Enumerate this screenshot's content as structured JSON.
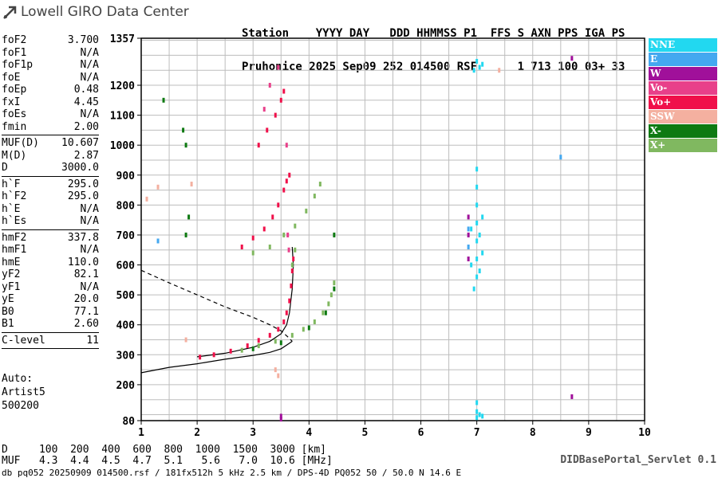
{
  "logo": {
    "text": "Lowell GIRO Data Center",
    "icon": "lowell-arrow-icon",
    "color": "#444444"
  },
  "header": {
    "line1": "Station    YYYY DAY   DDD HHMMSS P1  FFS S AXN PPS IGA PS",
    "line2": "Pruhonice 2025 Sep09 252 014500 RSF      1 713 100 03+ 33"
  },
  "params": [
    {
      "label": "foF2",
      "value": "3.700"
    },
    {
      "label": "foF1",
      "value": "N/A"
    },
    {
      "label": "foF1p",
      "value": "N/A"
    },
    {
      "label": "foE",
      "value": "N/A"
    },
    {
      "label": "foEp",
      "value": "0.48"
    },
    {
      "label": "fxI",
      "value": "4.45"
    },
    {
      "label": "foEs",
      "value": "N/A"
    },
    {
      "label": "fmin",
      "value": "2.00"
    },
    {
      "sep": true
    },
    {
      "label": "MUF(D)",
      "value": "10.607"
    },
    {
      "label": "M(D)",
      "value": "2.87"
    },
    {
      "label": "D",
      "value": "3000.0"
    },
    {
      "sep": true
    },
    {
      "label": "h`F",
      "value": "295.0"
    },
    {
      "label": "h`F2",
      "value": "295.0"
    },
    {
      "label": "h`E",
      "value": "N/A"
    },
    {
      "label": "h`Es",
      "value": "N/A"
    },
    {
      "sep": true
    },
    {
      "label": "hmF2",
      "value": "337.8"
    },
    {
      "label": "hmF1",
      "value": "N/A"
    },
    {
      "label": "hmE",
      "value": "110.0"
    },
    {
      "label": "yF2",
      "value": "82.1"
    },
    {
      "label": "yF1",
      "value": "N/A"
    },
    {
      "label": "yE",
      "value": "20.0"
    },
    {
      "label": "B0",
      "value": "77.1"
    },
    {
      "label": "B1",
      "value": "2.60"
    },
    {
      "sep": true
    },
    {
      "label": "C-level",
      "value": "11"
    },
    {
      "sep": true
    }
  ],
  "auto": {
    "line1": "Auto:",
    "line2": "Artist5",
    "line3": "500200"
  },
  "legend": [
    {
      "label": "NNE",
      "color": "#22D8F0"
    },
    {
      "label": "E",
      "color": "#44A8F0"
    },
    {
      "label": "W",
      "color": "#A0109A"
    },
    {
      "label": "Vo-",
      "color": "#E8408A"
    },
    {
      "label": "Vo+",
      "color": "#F0104A"
    },
    {
      "label": "SSW",
      "color": "#F4B0A0"
    },
    {
      "label": "X-",
      "color": "#0E7A12"
    },
    {
      "label": "X+",
      "color": "#80B860"
    }
  ],
  "muf_table": {
    "row1": "D     100  200  400  600  800  1000  1500  3000 [km]",
    "row2": "MUF   4.3  4.4  4.5  4.7  5.1   5.6   7.0  10.6 [MHz]"
  },
  "footer": "db pq052 20250909 014500.rsf / 181fx512h 5 kHz 2.5 km / DPS-4D PQ052 50 / 50.0 N 14.6 E",
  "servlet": "DIDBasePortal_Servlet 0.1",
  "chart_data": {
    "type": "scatter",
    "xlim": [
      1,
      10
    ],
    "ylim": [
      80,
      1357
    ],
    "x_ticks": [
      1,
      2,
      3,
      4,
      5,
      6,
      7,
      8,
      9,
      10
    ],
    "y_ticks": [
      80,
      200,
      300,
      400,
      500,
      600,
      700,
      800,
      900,
      1000,
      1100,
      1200,
      1357
    ],
    "xlabel": "",
    "ylabel": "",
    "grid": true,
    "legend_position": "right",
    "series": [
      {
        "name": "Vo+",
        "color": "#F0104A",
        "points": [
          [
            2.05,
            292
          ],
          [
            2.3,
            300
          ],
          [
            2.6,
            312
          ],
          [
            2.9,
            330
          ],
          [
            3.1,
            348
          ],
          [
            3.3,
            365
          ],
          [
            3.45,
            385
          ],
          [
            3.55,
            410
          ],
          [
            3.6,
            440
          ],
          [
            3.65,
            480
          ],
          [
            3.68,
            530
          ],
          [
            3.7,
            580
          ],
          [
            3.72,
            620
          ],
          [
            2.8,
            660
          ],
          [
            3.0,
            690
          ],
          [
            3.2,
            720
          ],
          [
            3.35,
            760
          ],
          [
            3.45,
            800
          ],
          [
            3.55,
            850
          ],
          [
            3.6,
            880
          ],
          [
            3.65,
            900
          ],
          [
            3.1,
            1000
          ],
          [
            3.25,
            1050
          ],
          [
            3.4,
            1100
          ],
          [
            3.5,
            1150
          ],
          [
            3.55,
            1180
          ]
        ]
      },
      {
        "name": "X+",
        "color": "#80B860",
        "points": [
          [
            2.8,
            315
          ],
          [
            3.1,
            330
          ],
          [
            3.4,
            345
          ],
          [
            3.7,
            365
          ],
          [
            3.9,
            385
          ],
          [
            4.1,
            410
          ],
          [
            4.25,
            440
          ],
          [
            4.35,
            470
          ],
          [
            4.4,
            500
          ],
          [
            4.45,
            540
          ],
          [
            3.0,
            640
          ],
          [
            3.3,
            660
          ],
          [
            3.55,
            700
          ],
          [
            3.75,
            730
          ],
          [
            3.95,
            780
          ],
          [
            4.1,
            830
          ],
          [
            4.2,
            870
          ],
          [
            3.75,
            650
          ],
          [
            3.7,
            600
          ]
        ]
      },
      {
        "name": "X-",
        "color": "#0E7A12",
        "points": [
          [
            3.0,
            320
          ],
          [
            3.5,
            340
          ],
          [
            4.0,
            390
          ],
          [
            4.3,
            440
          ],
          [
            4.45,
            520
          ],
          [
            4.45,
            700
          ],
          [
            1.75,
            1050
          ],
          [
            1.8,
            1000
          ],
          [
            1.85,
            760
          ],
          [
            1.8,
            700
          ],
          [
            1.4,
            1150
          ]
        ]
      },
      {
        "name": "Vo-",
        "color": "#E8408A",
        "points": [
          [
            3.2,
            1120
          ],
          [
            3.3,
            1200
          ],
          [
            3.45,
            1260
          ],
          [
            3.6,
            1000
          ],
          [
            3.62,
            700
          ],
          [
            3.64,
            650
          ]
        ]
      },
      {
        "name": "NNE",
        "color": "#22D8F0",
        "points": [
          [
            6.95,
            520
          ],
          [
            7.0,
            560
          ],
          [
            7.0,
            620
          ],
          [
            7.0,
            680
          ],
          [
            7.0,
            740
          ],
          [
            7.0,
            800
          ],
          [
            7.0,
            860
          ],
          [
            7.0,
            920
          ],
          [
            7.05,
            580
          ],
          [
            7.05,
            700
          ],
          [
            7.1,
            640
          ],
          [
            7.1,
            760
          ],
          [
            6.9,
            600
          ],
          [
            6.9,
            720
          ],
          [
            7.0,
            90
          ],
          [
            7.0,
            110
          ],
          [
            7.0,
            140
          ],
          [
            7.05,
            100
          ],
          [
            7.1,
            95
          ],
          [
            7.0,
            1280
          ],
          [
            6.95,
            1250
          ],
          [
            7.05,
            1260
          ],
          [
            7.1,
            1270
          ]
        ]
      },
      {
        "name": "W",
        "color": "#A0109A",
        "points": [
          [
            6.85,
            620
          ],
          [
            6.85,
            700
          ],
          [
            6.85,
            760
          ],
          [
            3.5,
            85
          ],
          [
            3.5,
            95
          ],
          [
            8.7,
            160
          ],
          [
            8.7,
            1290
          ]
        ]
      },
      {
        "name": "E",
        "color": "#44A8F0",
        "points": [
          [
            6.85,
            660
          ],
          [
            6.85,
            720
          ],
          [
            8.5,
            960
          ],
          [
            1.3,
            680
          ]
        ]
      },
      {
        "name": "SSW",
        "color": "#F4B0A0",
        "points": [
          [
            1.1,
            820
          ],
          [
            1.3,
            860
          ],
          [
            1.8,
            350
          ],
          [
            1.9,
            870
          ],
          [
            3.4,
            250
          ],
          [
            3.45,
            230
          ],
          [
            7.4,
            1250
          ]
        ]
      }
    ],
    "curves": [
      {
        "style": "solid",
        "points": [
          [
            1,
            240
          ],
          [
            1.5,
            258
          ],
          [
            2,
            270
          ],
          [
            2.5,
            285
          ],
          [
            3,
            298
          ],
          [
            3.3,
            308
          ],
          [
            3.5,
            320
          ],
          [
            3.62,
            335
          ],
          [
            3.7,
            345
          ]
        ]
      },
      {
        "style": "solid",
        "points": [
          [
            2,
            293
          ],
          [
            2.5,
            305
          ],
          [
            3,
            325
          ],
          [
            3.3,
            345
          ],
          [
            3.5,
            370
          ],
          [
            3.6,
            400
          ],
          [
            3.65,
            440
          ],
          [
            3.7,
            520
          ],
          [
            3.72,
            600
          ],
          [
            3.7,
            660
          ]
        ]
      },
      {
        "style": "dashed",
        "points": [
          [
            1,
            582
          ],
          [
            1.5,
            540
          ],
          [
            2,
            500
          ],
          [
            2.5,
            460
          ],
          [
            3,
            425
          ],
          [
            3.3,
            400
          ],
          [
            3.5,
            380
          ],
          [
            3.62,
            360
          ],
          [
            3.7,
            345
          ]
        ]
      }
    ]
  }
}
